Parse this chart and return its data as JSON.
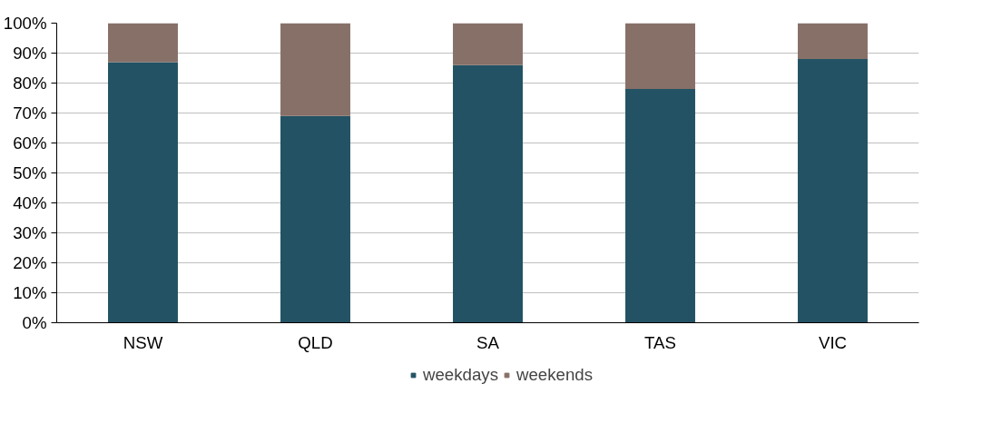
{
  "chart_data": {
    "type": "bar",
    "stacked": true,
    "categories": [
      "NSW",
      "QLD",
      "SA",
      "TAS",
      "VIC"
    ],
    "series": [
      {
        "name": "weekdays",
        "color": "#225263",
        "values": [
          87,
          69,
          86,
          78,
          88
        ]
      },
      {
        "name": "weekends",
        "color": "#877068",
        "values": [
          13,
          31,
          14,
          22,
          12
        ]
      }
    ],
    "ylim": [
      0,
      100
    ],
    "yticks": [
      {
        "value": 0,
        "label": "0%"
      },
      {
        "value": 10,
        "label": "10%"
      },
      {
        "value": 20,
        "label": "20%"
      },
      {
        "value": 30,
        "label": "30%"
      },
      {
        "value": 40,
        "label": "40%"
      },
      {
        "value": 50,
        "label": "50%"
      },
      {
        "value": 60,
        "label": "60%"
      },
      {
        "value": 70,
        "label": "70%"
      },
      {
        "value": 80,
        "label": "80%"
      },
      {
        "value": 90,
        "label": "90%"
      },
      {
        "value": 100,
        "label": "100%"
      }
    ],
    "grid": "y",
    "legend": "bottom"
  }
}
